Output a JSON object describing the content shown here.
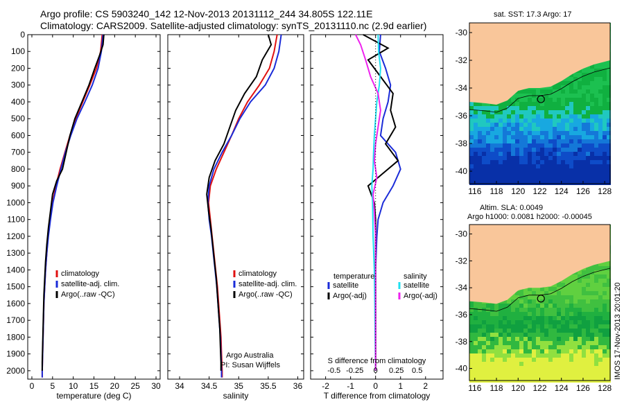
{
  "title": {
    "line1": "Argo profile: CS 5903240_142 12-Nov-2013 20131112_244 34.805S 122.11E",
    "line2": "Climatology: CARS2009. Satellite-adjusted climatology: synTS_20131110.nc (2.9d earlier)"
  },
  "footer_vertical": "IMOS 17-Nov-2013 20:01:20",
  "colors": {
    "climatology": "#e01010",
    "satellite": "#1a2bd8",
    "argo": "#000000",
    "sat_cyan": "#1fe0f0",
    "argo_magenta": "#ee22ee",
    "land": "#f9c69a"
  },
  "chart_data": [
    {
      "id": "temperature",
      "type": "line",
      "xlabel": "temperature (deg C)",
      "ylabel": "",
      "xlim": [
        -1,
        31
      ],
      "ylim": [
        2050,
        0
      ],
      "y_inverted": true,
      "xticks": [
        0,
        5,
        10,
        15,
        20,
        25,
        30
      ],
      "yticks": [
        0,
        100,
        200,
        300,
        400,
        500,
        600,
        700,
        800,
        900,
        1000,
        1100,
        1200,
        1300,
        1400,
        1500,
        1600,
        1700,
        1800,
        1900,
        2000
      ],
      "legend": [
        "climatology",
        "satellite-adj. clim.",
        "Argo(..raw -QC)"
      ],
      "series": [
        {
          "name": "climatology",
          "color_key": "climatology",
          "points": [
            [
              17.0,
              0
            ],
            [
              16.6,
              100
            ],
            [
              15.6,
              200
            ],
            [
              14.0,
              300
            ],
            [
              12.3,
              400
            ],
            [
              10.6,
              500
            ],
            [
              9.2,
              600
            ],
            [
              8.0,
              700
            ],
            [
              6.8,
              800
            ],
            [
              5.8,
              900
            ],
            [
              5.0,
              1000
            ],
            [
              4.4,
              1100
            ],
            [
              3.9,
              1200
            ],
            [
              3.6,
              1300
            ],
            [
              3.3,
              1400
            ],
            [
              3.1,
              1500
            ],
            [
              2.9,
              1600
            ],
            [
              2.8,
              1700
            ],
            [
              2.7,
              1800
            ],
            [
              2.6,
              1900
            ],
            [
              2.5,
              2000
            ],
            [
              2.5,
              2040
            ]
          ]
        },
        {
          "name": "satellite-adj. clim.",
          "color_key": "satellite",
          "points": [
            [
              17.2,
              0
            ],
            [
              16.8,
              100
            ],
            [
              16.0,
              200
            ],
            [
              14.6,
              300
            ],
            [
              12.8,
              400
            ],
            [
              10.9,
              500
            ],
            [
              9.4,
              600
            ],
            [
              8.1,
              700
            ],
            [
              7.0,
              800
            ],
            [
              6.0,
              900
            ],
            [
              5.1,
              1000
            ],
            [
              4.5,
              1100
            ],
            [
              4.0,
              1200
            ],
            [
              3.6,
              1300
            ],
            [
              3.3,
              1400
            ],
            [
              3.1,
              1500
            ],
            [
              2.9,
              1600
            ],
            [
              2.8,
              1700
            ],
            [
              2.7,
              1800
            ],
            [
              2.6,
              1900
            ],
            [
              2.5,
              2000
            ],
            [
              2.5,
              2040
            ]
          ]
        },
        {
          "name": "Argo(..raw -QC)",
          "color_key": "argo",
          "points": [
            [
              17.4,
              0
            ],
            [
              17.2,
              60
            ],
            [
              16.4,
              120
            ],
            [
              15.2,
              200
            ],
            [
              13.8,
              300
            ],
            [
              12.1,
              400
            ],
            [
              10.4,
              500
            ],
            [
              9.2,
              600
            ],
            [
              8.3,
              700
            ],
            [
              7.4,
              800
            ],
            [
              6.0,
              870
            ],
            [
              5.0,
              950
            ],
            [
              4.5,
              1050
            ],
            [
              4.0,
              1150
            ],
            [
              3.6,
              1250
            ],
            [
              3.3,
              1350
            ],
            [
              3.1,
              1450
            ],
            [
              2.9,
              1550
            ],
            [
              2.8,
              1650
            ],
            [
              2.7,
              1750
            ],
            [
              2.6,
              1850
            ],
            [
              2.5,
              1950
            ],
            [
              2.5,
              2000
            ]
          ]
        }
      ]
    },
    {
      "id": "salinity",
      "type": "line",
      "xlabel": "salinity",
      "xlim": [
        33.8,
        36.1
      ],
      "ylim": [
        2050,
        0
      ],
      "y_inverted": true,
      "xticks": [
        34,
        34.5,
        35,
        35.5,
        36
      ],
      "xtick_labels": [
        "34",
        "34.5",
        "35",
        "35.5",
        "36"
      ],
      "legend": [
        "climatology",
        "satellite-adj. clim.",
        "Argo(..raw -QC)"
      ],
      "annotation": [
        "Argo Australia",
        "PI: Susan Wijffels"
      ],
      "series": [
        {
          "name": "climatology",
          "color_key": "climatology",
          "points": [
            [
              35.65,
              0
            ],
            [
              35.6,
              100
            ],
            [
              35.52,
              200
            ],
            [
              35.35,
              300
            ],
            [
              35.15,
              400
            ],
            [
              35.0,
              500
            ],
            [
              34.88,
              600
            ],
            [
              34.75,
              700
            ],
            [
              34.62,
              800
            ],
            [
              34.52,
              900
            ],
            [
              34.49,
              1000
            ],
            [
              34.52,
              1100
            ],
            [
              34.55,
              1200
            ],
            [
              34.58,
              1300
            ],
            [
              34.61,
              1400
            ],
            [
              34.64,
              1500
            ],
            [
              34.66,
              1600
            ],
            [
              34.68,
              1700
            ],
            [
              34.7,
              1800
            ],
            [
              34.71,
              1900
            ],
            [
              34.72,
              2000
            ],
            [
              34.72,
              2040
            ]
          ]
        },
        {
          "name": "satellite-adj. clim.",
          "color_key": "satellite",
          "points": [
            [
              35.72,
              0
            ],
            [
              35.68,
              100
            ],
            [
              35.6,
              200
            ],
            [
              35.45,
              300
            ],
            [
              35.2,
              400
            ],
            [
              35.02,
              500
            ],
            [
              34.88,
              600
            ],
            [
              34.72,
              700
            ],
            [
              34.58,
              800
            ],
            [
              34.5,
              900
            ],
            [
              34.48,
              1000
            ],
            [
              34.5,
              1100
            ],
            [
              34.54,
              1200
            ],
            [
              34.57,
              1300
            ],
            [
              34.6,
              1400
            ],
            [
              34.63,
              1500
            ],
            [
              34.65,
              1600
            ],
            [
              34.67,
              1700
            ],
            [
              34.69,
              1800
            ],
            [
              34.7,
              1900
            ],
            [
              34.71,
              2000
            ],
            [
              34.71,
              2040
            ]
          ]
        },
        {
          "name": "Argo(..raw -QC)",
          "color_key": "argo",
          "points": [
            [
              35.5,
              0
            ],
            [
              35.55,
              60
            ],
            [
              35.4,
              150
            ],
            [
              35.3,
              250
            ],
            [
              35.1,
              350
            ],
            [
              34.95,
              450
            ],
            [
              34.85,
              550
            ],
            [
              34.75,
              650
            ],
            [
              34.6,
              750
            ],
            [
              34.5,
              850
            ],
            [
              34.46,
              950
            ],
            [
              34.49,
              1050
            ],
            [
              34.53,
              1150
            ],
            [
              34.56,
              1250
            ],
            [
              34.59,
              1350
            ],
            [
              34.62,
              1450
            ],
            [
              34.64,
              1550
            ],
            [
              34.66,
              1650
            ],
            [
              34.68,
              1750
            ],
            [
              34.69,
              1850
            ],
            [
              34.7,
              1950
            ],
            [
              34.7,
              2000
            ]
          ]
        }
      ]
    },
    {
      "id": "difference",
      "type": "line",
      "xlabel": "T difference from climatology",
      "xlabel_top": "S difference from climatology",
      "xlim": [
        -2.6,
        2.7
      ],
      "ylim": [
        2050,
        0
      ],
      "y_inverted": true,
      "xticks": [
        -2,
        -1,
        0,
        1,
        2
      ],
      "s_xticks": [
        -0.5,
        -0.25,
        0,
        0.25,
        0.5
      ],
      "s_xtick_labels": [
        "-0.5",
        "-0.25",
        "0",
        "0.25",
        "0.5"
      ],
      "legend_headers": [
        "temperature",
        "salinity"
      ],
      "legend_temperature": [
        "satellite",
        "Argo(-adj)"
      ],
      "legend_salinity": [
        "satellite",
        "Argo(-adj)"
      ],
      "series": [
        {
          "name": "temperature satellite",
          "color_key": "satellite",
          "points": [
            [
              0.2,
              0
            ],
            [
              0.15,
              100
            ],
            [
              0.4,
              200
            ],
            [
              0.6,
              300
            ],
            [
              0.5,
              400
            ],
            [
              0.3,
              500
            ],
            [
              0.2,
              600
            ],
            [
              0.8,
              700
            ],
            [
              1.0,
              800
            ],
            [
              0.7,
              900
            ],
            [
              0.3,
              1000
            ],
            [
              0.1,
              1100
            ],
            [
              0.05,
              1200
            ],
            [
              0.0,
              1400
            ],
            [
              0.0,
              1600
            ],
            [
              0.0,
              1800
            ],
            [
              0.0,
              2000
            ]
          ]
        },
        {
          "name": "temperature Argo(-adj)",
          "color_key": "argo",
          "points": [
            [
              -0.5,
              0
            ],
            [
              0.5,
              80
            ],
            [
              -0.3,
              150
            ],
            [
              0.2,
              250
            ],
            [
              0.7,
              350
            ],
            [
              0.6,
              450
            ],
            [
              0.8,
              550
            ],
            [
              0.4,
              650
            ],
            [
              0.9,
              750
            ],
            [
              -0.3,
              900
            ],
            [
              -0.05,
              1000
            ],
            [
              0.0,
              1100
            ],
            [
              0.0,
              1300
            ],
            [
              0.0,
              1500
            ],
            [
              0.0,
              1700
            ],
            [
              0.0,
              1900
            ],
            [
              0.0,
              2000
            ]
          ]
        },
        {
          "name": "salinity satellite",
          "color_key": "sat_cyan",
          "points": [
            [
              0.1,
              0
            ],
            [
              0.12,
              100
            ],
            [
              0.2,
              200
            ],
            [
              0.15,
              300
            ],
            [
              0.05,
              400
            ],
            [
              0.0,
              500
            ],
            [
              -0.05,
              600
            ],
            [
              -0.08,
              700
            ],
            [
              -0.1,
              800
            ],
            [
              -0.15,
              900
            ],
            [
              -0.12,
              1000
            ],
            [
              -0.1,
              1200
            ],
            [
              -0.05,
              1400
            ],
            [
              -0.03,
              1600
            ],
            [
              -0.02,
              1800
            ],
            [
              0.0,
              2000
            ]
          ]
        },
        {
          "name": "salinity Argo(-adj)",
          "color_key": "argo_magenta",
          "points": [
            [
              -0.8,
              0
            ],
            [
              -0.6,
              60
            ],
            [
              -0.4,
              150
            ],
            [
              -0.2,
              250
            ],
            [
              0.1,
              350
            ],
            [
              0.2,
              450
            ],
            [
              0.1,
              550
            ],
            [
              0.0,
              650
            ],
            [
              -0.05,
              750
            ],
            [
              0.05,
              850
            ],
            [
              -0.1,
              950
            ],
            [
              -0.05,
              1050
            ],
            [
              0.0,
              1200
            ],
            [
              0.0,
              1400
            ],
            [
              0.0,
              1600
            ],
            [
              0.0,
              1800
            ],
            [
              0.0,
              2000
            ]
          ]
        }
      ]
    },
    {
      "id": "sst_map",
      "type": "heatmap",
      "title": "sat. SST: 17.3  Argo: 17",
      "xticks": [
        116,
        118,
        120,
        122,
        124,
        126,
        128
      ],
      "yticks": [
        -30,
        -32,
        -34,
        -36,
        -38,
        -40
      ]
    },
    {
      "id": "sla_map",
      "type": "heatmap",
      "title_line1": "Altim. SLA: 0.0049",
      "title_line2": "Argo h1000: 0.0081 h2000: -0.00045",
      "xticks": [
        116,
        118,
        120,
        122,
        124,
        126,
        128
      ],
      "yticks": [
        -30,
        -32,
        -34,
        -36,
        -38,
        -40
      ]
    }
  ]
}
